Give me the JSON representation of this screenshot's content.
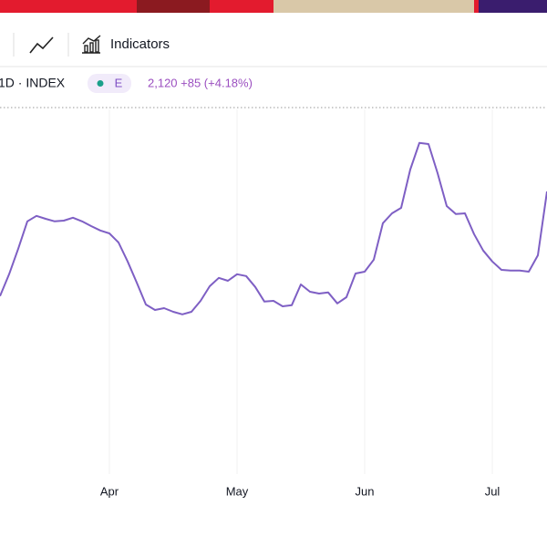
{
  "toolbar": {
    "indicators": "Indicators"
  },
  "legend": {
    "symbol": "1D · INDEX",
    "badge": "E",
    "quote": "2,120 +85 (+4.18%)"
  },
  "chart_data": {
    "type": "line",
    "color": "#7e5fc4",
    "categories": [
      null,
      null,
      null,
      null,
      null,
      null,
      null,
      null,
      null,
      null,
      null,
      null,
      "Apr",
      null,
      null,
      null,
      null,
      null,
      null,
      null,
      null,
      null,
      null,
      null,
      null,
      null,
      "May",
      null,
      null,
      null,
      null,
      null,
      null,
      null,
      null,
      null,
      null,
      null,
      null,
      null,
      "Jun",
      null,
      null,
      null,
      null,
      null,
      null,
      null,
      null,
      null,
      null,
      null,
      null,
      null,
      "Jul",
      null,
      null,
      null,
      null,
      null,
      null
    ],
    "values": [
      48.3,
      54.3,
      61.3,
      68.8,
      70.3,
      69.5,
      68.8,
      69,
      69.8,
      68.8,
      67.5,
      66.3,
      65.5,
      63,
      57.8,
      52,
      46,
      44.5,
      45,
      44,
      43.3,
      44,
      47,
      51,
      53.3,
      52.5,
      54.3,
      53.8,
      50.8,
      46.8,
      47,
      45.5,
      45.8,
      51.5,
      49.5,
      49,
      49.3,
      46.3,
      48,
      54.5,
      55,
      58.3,
      68.3,
      71,
      72.5,
      83,
      90.3,
      90,
      82,
      73,
      70.8,
      71,
      65.3,
      60.8,
      57.8,
      55.5,
      55.3,
      55.3,
      55,
      59.5,
      77
    ],
    "ylim": [
      0,
      100
    ]
  }
}
